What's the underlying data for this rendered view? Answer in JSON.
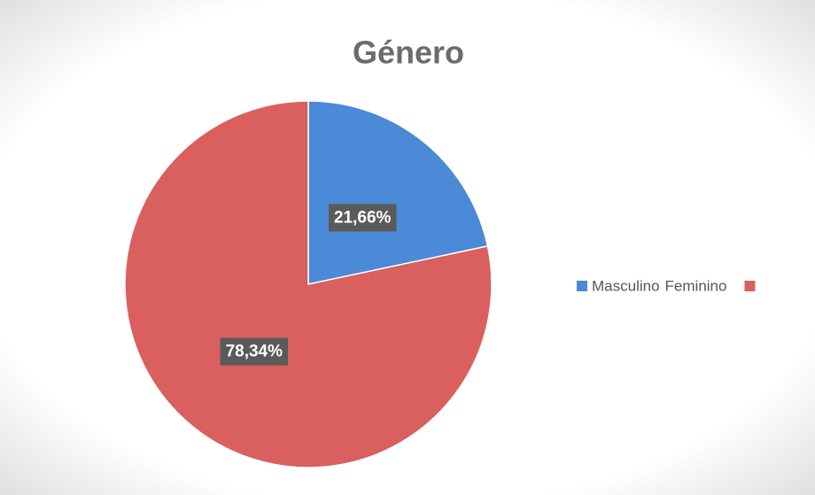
{
  "chart_data": {
    "type": "pie",
    "title": "Género",
    "categories": [
      "Masculino",
      "Feminino"
    ],
    "values": [
      21.66,
      78.34
    ],
    "value_labels": [
      "21,66%",
      "78,34%"
    ],
    "colors": [
      "#4a8ad6",
      "#d9605e"
    ],
    "legend": "right"
  }
}
